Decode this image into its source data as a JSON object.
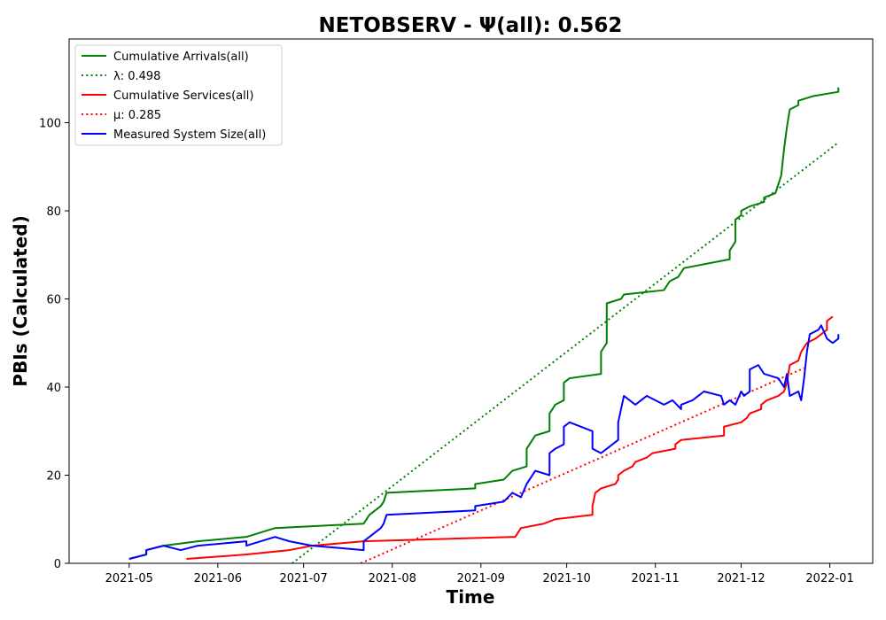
{
  "chart_data": {
    "type": "line",
    "title": "NETOBSERV -  Ψ(all): 0.562",
    "xlabel": "Time",
    "ylabel": "PBIs (Calculated)",
    "xlim": [
      "2021-04-10",
      "2022-01-16"
    ],
    "ylim": [
      0,
      119
    ],
    "x_ticks": [
      "2021-05",
      "2021-06",
      "2021-07",
      "2021-08",
      "2021-09",
      "2021-10",
      "2021-11",
      "2021-12",
      "2022-01"
    ],
    "y_ticks": [
      0,
      20,
      40,
      60,
      80,
      100
    ],
    "grid": false,
    "legend_position": "top-left",
    "series": [
      {
        "name": "Cumulative Arrivals(all)",
        "color": "#008000",
        "style": "solid",
        "points": [
          [
            "2021-05-01",
            1
          ],
          [
            "2021-05-07",
            2
          ],
          [
            "2021-05-07",
            3
          ],
          [
            "2021-05-13",
            4
          ],
          [
            "2021-05-25",
            5
          ],
          [
            "2021-06-11",
            6
          ],
          [
            "2021-06-21",
            8
          ],
          [
            "2021-07-22",
            9
          ],
          [
            "2021-07-24",
            11
          ],
          [
            "2021-07-26",
            12
          ],
          [
            "2021-07-28",
            13
          ],
          [
            "2021-07-29",
            14
          ],
          [
            "2021-07-30",
            16
          ],
          [
            "2021-08-30",
            17
          ],
          [
            "2021-08-30",
            18
          ],
          [
            "2021-09-09",
            19
          ],
          [
            "2021-09-12",
            21
          ],
          [
            "2021-09-17",
            22
          ],
          [
            "2021-09-17",
            26
          ],
          [
            "2021-09-20",
            29
          ],
          [
            "2021-09-25",
            30
          ],
          [
            "2021-09-25",
            34
          ],
          [
            "2021-09-27",
            36
          ],
          [
            "2021-09-30",
            37
          ],
          [
            "2021-09-30",
            41
          ],
          [
            "2021-10-02",
            42
          ],
          [
            "2021-10-13",
            43
          ],
          [
            "2021-10-13",
            48
          ],
          [
            "2021-10-15",
            50
          ],
          [
            "2021-10-15",
            59
          ],
          [
            "2021-10-20",
            60
          ],
          [
            "2021-10-21",
            61
          ],
          [
            "2021-11-04",
            62
          ],
          [
            "2021-11-06",
            64
          ],
          [
            "2021-11-09",
            65
          ],
          [
            "2021-11-11",
            67
          ],
          [
            "2021-11-27",
            69
          ],
          [
            "2021-11-27",
            71
          ],
          [
            "2021-11-29",
            73
          ],
          [
            "2021-11-29",
            78
          ],
          [
            "2021-12-01",
            79
          ],
          [
            "2021-12-01",
            80
          ],
          [
            "2021-12-04",
            81
          ],
          [
            "2021-12-09",
            82
          ],
          [
            "2021-12-09",
            83
          ],
          [
            "2021-12-13",
            84
          ],
          [
            "2021-12-14",
            86
          ],
          [
            "2021-12-15",
            88
          ],
          [
            "2021-12-16",
            94
          ],
          [
            "2021-12-17",
            99
          ],
          [
            "2021-12-18",
            103
          ],
          [
            "2021-12-21",
            104
          ],
          [
            "2021-12-21",
            105
          ],
          [
            "2021-12-26",
            106
          ],
          [
            "2022-01-04",
            107
          ],
          [
            "2022-01-04",
            108
          ]
        ]
      },
      {
        "name": "λ: 0.498",
        "color": "#008000",
        "style": "dotted",
        "points": [
          [
            "2021-06-27",
            0
          ],
          [
            "2022-01-04",
            95.5
          ]
        ]
      },
      {
        "name": "Cumulative Services(all)",
        "color": "#ff0000",
        "style": "solid",
        "points": [
          [
            "2021-05-21",
            1
          ],
          [
            "2021-06-11",
            2
          ],
          [
            "2021-06-26",
            3
          ],
          [
            "2021-07-04",
            4
          ],
          [
            "2021-07-22",
            5
          ],
          [
            "2021-09-13",
            6
          ],
          [
            "2021-09-15",
            8
          ],
          [
            "2021-09-23",
            9
          ],
          [
            "2021-09-27",
            10
          ],
          [
            "2021-10-10",
            11
          ],
          [
            "2021-10-10",
            13
          ],
          [
            "2021-10-11",
            16
          ],
          [
            "2021-10-13",
            17
          ],
          [
            "2021-10-18",
            18
          ],
          [
            "2021-10-19",
            19
          ],
          [
            "2021-10-19",
            20
          ],
          [
            "2021-10-21",
            21
          ],
          [
            "2021-10-24",
            22
          ],
          [
            "2021-10-25",
            23
          ],
          [
            "2021-10-29",
            24
          ],
          [
            "2021-10-31",
            25
          ],
          [
            "2021-11-08",
            26
          ],
          [
            "2021-11-08",
            27
          ],
          [
            "2021-11-10",
            28
          ],
          [
            "2021-11-25",
            29
          ],
          [
            "2021-11-25",
            31
          ],
          [
            "2021-12-01",
            32
          ],
          [
            "2021-12-03",
            33
          ],
          [
            "2021-12-04",
            34
          ],
          [
            "2021-12-08",
            35
          ],
          [
            "2021-12-08",
            36
          ],
          [
            "2021-12-10",
            37
          ],
          [
            "2021-12-14",
            38
          ],
          [
            "2021-12-16",
            39
          ],
          [
            "2021-12-17",
            41
          ],
          [
            "2021-12-18",
            45
          ],
          [
            "2021-12-21",
            46
          ],
          [
            "2021-12-22",
            48
          ],
          [
            "2021-12-24",
            50
          ],
          [
            "2021-12-27",
            51
          ],
          [
            "2021-12-29",
            52
          ],
          [
            "2021-12-31",
            53
          ],
          [
            "2021-12-31",
            55
          ],
          [
            "2022-01-02",
            56
          ]
        ]
      },
      {
        "name": "μ: 0.285",
        "color": "#ff0000",
        "style": "dotted",
        "points": [
          [
            "2021-07-21",
            0
          ],
          [
            "2021-12-23",
            44.3
          ]
        ]
      },
      {
        "name": "Measured System Size(all)",
        "color": "#0000ff",
        "style": "solid",
        "points": [
          [
            "2021-05-01",
            1
          ],
          [
            "2021-05-07",
            2
          ],
          [
            "2021-05-07",
            3
          ],
          [
            "2021-05-13",
            4
          ],
          [
            "2021-05-19",
            3
          ],
          [
            "2021-05-25",
            4
          ],
          [
            "2021-06-11",
            5
          ],
          [
            "2021-06-11",
            4
          ],
          [
            "2021-06-21",
            6
          ],
          [
            "2021-06-26",
            5
          ],
          [
            "2021-07-04",
            4
          ],
          [
            "2021-07-22",
            3
          ],
          [
            "2021-07-22",
            5
          ],
          [
            "2021-07-24",
            6
          ],
          [
            "2021-07-26",
            7
          ],
          [
            "2021-07-28",
            8
          ],
          [
            "2021-07-29",
            9
          ],
          [
            "2021-07-30",
            11
          ],
          [
            "2021-08-30",
            12
          ],
          [
            "2021-08-30",
            13
          ],
          [
            "2021-09-09",
            14
          ],
          [
            "2021-09-12",
            16
          ],
          [
            "2021-09-15",
            15
          ],
          [
            "2021-09-17",
            18
          ],
          [
            "2021-09-20",
            21
          ],
          [
            "2021-09-25",
            20
          ],
          [
            "2021-09-25",
            25
          ],
          [
            "2021-09-27",
            26
          ],
          [
            "2021-09-30",
            27
          ],
          [
            "2021-09-30",
            31
          ],
          [
            "2021-10-02",
            32
          ],
          [
            "2021-10-10",
            30
          ],
          [
            "2021-10-10",
            26
          ],
          [
            "2021-10-13",
            25
          ],
          [
            "2021-10-15",
            26
          ],
          [
            "2021-10-19",
            28
          ],
          [
            "2021-10-19",
            32
          ],
          [
            "2021-10-21",
            38
          ],
          [
            "2021-10-23",
            37
          ],
          [
            "2021-10-25",
            36
          ],
          [
            "2021-10-29",
            38
          ],
          [
            "2021-11-04",
            36
          ],
          [
            "2021-11-07",
            37
          ],
          [
            "2021-11-10",
            35
          ],
          [
            "2021-11-10",
            36
          ],
          [
            "2021-11-14",
            37
          ],
          [
            "2021-11-18",
            39
          ],
          [
            "2021-11-24",
            38
          ],
          [
            "2021-11-25",
            36
          ],
          [
            "2021-11-27",
            37
          ],
          [
            "2021-11-29",
            36
          ],
          [
            "2021-12-01",
            39
          ],
          [
            "2021-12-02",
            38
          ],
          [
            "2021-12-04",
            39
          ],
          [
            "2021-12-04",
            44
          ],
          [
            "2021-12-07",
            45
          ],
          [
            "2021-12-09",
            43
          ],
          [
            "2021-12-14",
            42
          ],
          [
            "2021-12-16",
            40
          ],
          [
            "2021-12-17",
            43
          ],
          [
            "2021-12-18",
            38
          ],
          [
            "2021-12-21",
            39
          ],
          [
            "2021-12-22",
            37
          ],
          [
            "2021-12-23",
            42
          ],
          [
            "2021-12-24",
            48
          ],
          [
            "2021-12-25",
            52
          ],
          [
            "2021-12-28",
            53
          ],
          [
            "2021-12-29",
            54
          ],
          [
            "2021-12-31",
            51
          ],
          [
            "2022-01-02",
            50
          ],
          [
            "2022-01-04",
            51
          ],
          [
            "2022-01-04",
            52
          ]
        ]
      }
    ]
  }
}
